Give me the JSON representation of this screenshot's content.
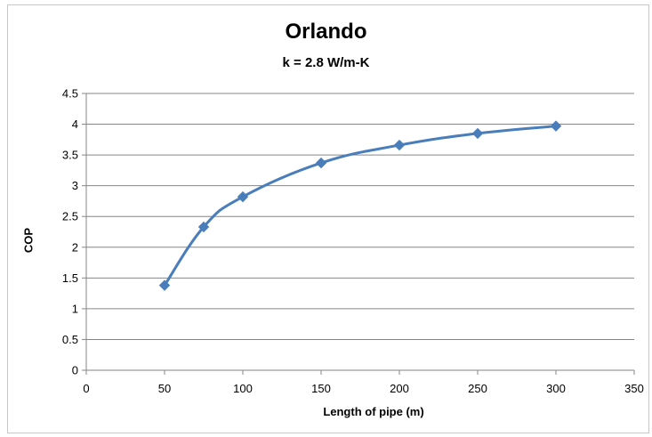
{
  "chart_data": {
    "type": "scatter",
    "title": "Orlando",
    "subtitle": "k = 2.8 W/m-K",
    "xlabel": "Length of pipe (m)",
    "ylabel": "COP",
    "xlim": [
      0,
      350
    ],
    "ylim": [
      0,
      4.5
    ],
    "xticks": [
      0,
      50,
      100,
      150,
      200,
      250,
      300,
      350
    ],
    "yticks": [
      0,
      0.5,
      1,
      1.5,
      2,
      2.5,
      3,
      3.5,
      4,
      4.5
    ],
    "grid": "horizontal",
    "line_style": "smoothed line with diamond markers",
    "series": [
      {
        "color": "#4a7ebb",
        "x": [
          50,
          75,
          100,
          150,
          200,
          250,
          300
        ],
        "y": [
          1.38,
          2.33,
          2.82,
          3.37,
          3.66,
          3.85,
          3.97
        ]
      }
    ]
  }
}
